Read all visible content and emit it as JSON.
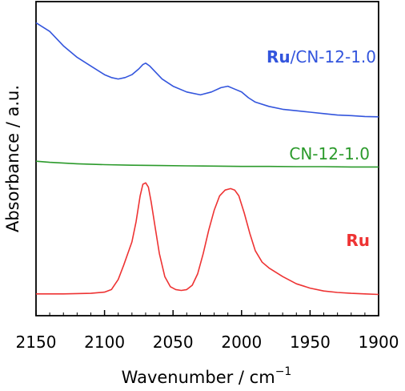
{
  "chart_data": {
    "type": "line",
    "xlabel": "Wavenumber / cm",
    "xlabel_superscript": "−1",
    "ylabel": "Absorbance / a.u.",
    "xlim": [
      2150,
      1900
    ],
    "x_reversed": true,
    "y_ticks_shown": false,
    "grid": false,
    "x_ticks": [
      "2150",
      "2100",
      "2050",
      "2000",
      "1950",
      "1900"
    ],
    "series": [
      {
        "name_prefix": "Ru",
        "name_suffix": "/CN-12-1.0",
        "color": "#3355dd",
        "points": [
          [
            2150,
            0.96
          ],
          [
            2140,
            0.93
          ],
          [
            2130,
            0.88
          ],
          [
            2120,
            0.84
          ],
          [
            2110,
            0.81
          ],
          [
            2100,
            0.78
          ],
          [
            2095,
            0.77
          ],
          [
            2090,
            0.765
          ],
          [
            2085,
            0.77
          ],
          [
            2080,
            0.78
          ],
          [
            2075,
            0.8
          ],
          [
            2072,
            0.815
          ],
          [
            2070,
            0.82
          ],
          [
            2067,
            0.81
          ],
          [
            2063,
            0.79
          ],
          [
            2058,
            0.765
          ],
          [
            2050,
            0.74
          ],
          [
            2040,
            0.72
          ],
          [
            2030,
            0.71
          ],
          [
            2022,
            0.72
          ],
          [
            2015,
            0.735
          ],
          [
            2010,
            0.74
          ],
          [
            2005,
            0.73
          ],
          [
            2000,
            0.72
          ],
          [
            1995,
            0.7
          ],
          [
            1990,
            0.685
          ],
          [
            1980,
            0.67
          ],
          [
            1970,
            0.66
          ],
          [
            1960,
            0.655
          ],
          [
            1950,
            0.65
          ],
          [
            1940,
            0.645
          ],
          [
            1930,
            0.64
          ],
          [
            1920,
            0.638
          ],
          [
            1910,
            0.635
          ],
          [
            1900,
            0.634
          ]
        ]
      },
      {
        "name": "CN-12-1.0",
        "color": "#2b9a2b",
        "points": [
          [
            2150,
            0.48
          ],
          [
            2140,
            0.476
          ],
          [
            2120,
            0.471
          ],
          [
            2100,
            0.468
          ],
          [
            2080,
            0.466
          ],
          [
            2060,
            0.465
          ],
          [
            2040,
            0.464
          ],
          [
            2020,
            0.463
          ],
          [
            2000,
            0.462
          ],
          [
            1980,
            0.462
          ],
          [
            1960,
            0.461
          ],
          [
            1940,
            0.461
          ],
          [
            1920,
            0.46
          ],
          [
            1900,
            0.46
          ]
        ]
      },
      {
        "name": "Ru",
        "color": "#ee3333",
        "points": [
          [
            2150,
            0.02
          ],
          [
            2130,
            0.02
          ],
          [
            2110,
            0.022
          ],
          [
            2100,
            0.026
          ],
          [
            2095,
            0.035
          ],
          [
            2090,
            0.07
          ],
          [
            2086,
            0.12
          ],
          [
            2083,
            0.16
          ],
          [
            2080,
            0.2
          ],
          [
            2077,
            0.27
          ],
          [
            2074,
            0.36
          ],
          [
            2072,
            0.4
          ],
          [
            2070,
            0.405
          ],
          [
            2068,
            0.39
          ],
          [
            2066,
            0.34
          ],
          [
            2063,
            0.25
          ],
          [
            2060,
            0.16
          ],
          [
            2056,
            0.08
          ],
          [
            2052,
            0.045
          ],
          [
            2048,
            0.035
          ],
          [
            2044,
            0.032
          ],
          [
            2040,
            0.035
          ],
          [
            2036,
            0.05
          ],
          [
            2032,
            0.09
          ],
          [
            2028,
            0.16
          ],
          [
            2024,
            0.24
          ],
          [
            2020,
            0.31
          ],
          [
            2016,
            0.36
          ],
          [
            2012,
            0.38
          ],
          [
            2008,
            0.385
          ],
          [
            2005,
            0.38
          ],
          [
            2002,
            0.36
          ],
          [
            1998,
            0.3
          ],
          [
            1994,
            0.23
          ],
          [
            1990,
            0.17
          ],
          [
            1985,
            0.13
          ],
          [
            1980,
            0.11
          ],
          [
            1970,
            0.08
          ],
          [
            1960,
            0.055
          ],
          [
            1950,
            0.04
          ],
          [
            1940,
            0.03
          ],
          [
            1930,
            0.025
          ],
          [
            1920,
            0.022
          ],
          [
            1910,
            0.02
          ],
          [
            1900,
            0.018
          ]
        ]
      }
    ]
  }
}
